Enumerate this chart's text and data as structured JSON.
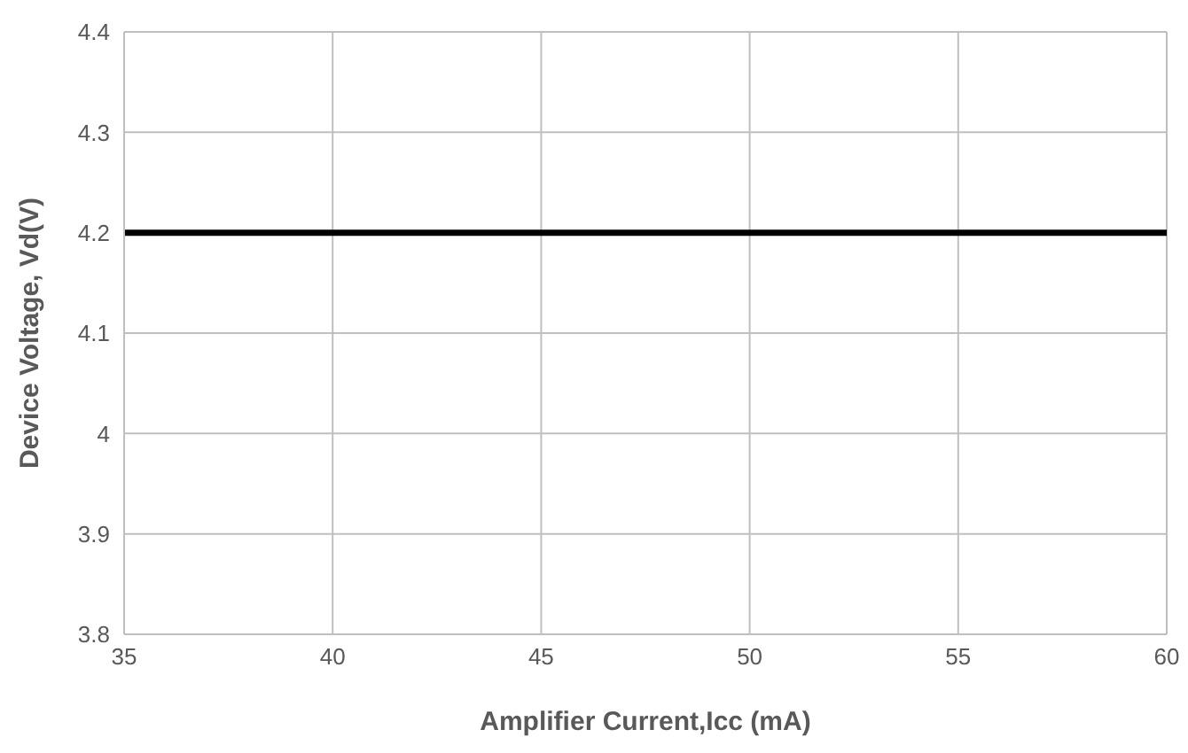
{
  "chart_data": {
    "type": "line",
    "xlabel": "Amplifier Current,Icc (mA)",
    "ylabel": "Device Voltage, Vd(V)",
    "x": [
      35,
      60
    ],
    "series": [
      {
        "color": "#000000",
        "values": [
          4.2,
          4.2
        ]
      }
    ],
    "xlim": [
      35,
      60
    ],
    "xticks": [
      35,
      40,
      45,
      50,
      55,
      60
    ],
    "ylim": [
      3.8,
      4.4
    ],
    "yticks": [
      3.8,
      3.9,
      4.1,
      4.2,
      4.3,
      4.4,
      4
    ],
    "grid": true,
    "marker": "none",
    "line_style": "solid",
    "legend": false
  }
}
